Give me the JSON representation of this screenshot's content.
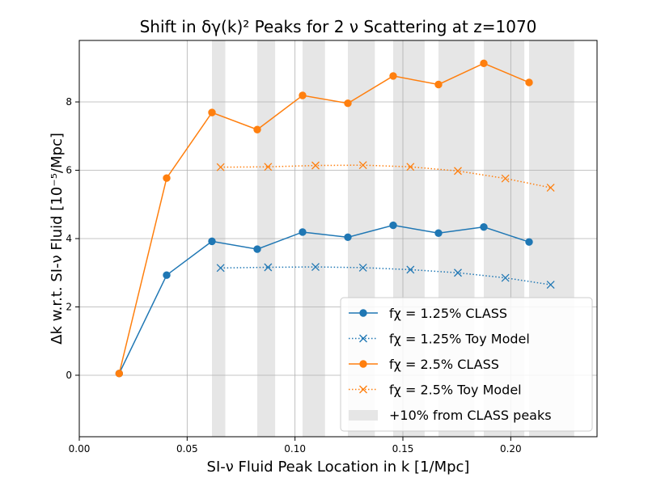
{
  "chart_data": {
    "type": "line",
    "title": "Shift in δγ(k)² Peaks for 2 ν Scattering at z=1070",
    "xlabel": "SI-ν Fluid Peak Location in k [1/Mpc]",
    "ylabel": "Δk w.r.t. SI-ν Fluid [10⁻⁵/Mpc]",
    "xlim": [
      0.0,
      0.24
    ],
    "ylim": [
      -1.8,
      9.8
    ],
    "xticks": [
      "0.00",
      "0.05",
      "0.10",
      "0.15",
      "0.20"
    ],
    "yticks": [
      "0",
      "2",
      "4",
      "6",
      "8"
    ],
    "grid": true,
    "legend_position": "lower-right",
    "series": [
      {
        "name": "fχ = 1.25% CLASS",
        "color": "#1f77b4",
        "style": "solid",
        "marker": "circle",
        "x": [
          0.0185,
          0.0405,
          0.0615,
          0.0825,
          0.1035,
          0.1245,
          0.1455,
          0.1665,
          0.1875,
          0.2085
        ],
        "y": [
          0.05,
          2.93,
          3.92,
          3.69,
          4.19,
          4.04,
          4.39,
          4.16,
          4.34,
          3.9
        ]
      },
      {
        "name": "fχ = 1.25% Toy Model",
        "color": "#1f77b4",
        "style": "dotted",
        "marker": "x",
        "x": [
          0.0655,
          0.0875,
          0.1095,
          0.1315,
          0.1535,
          0.1755,
          0.1975,
          0.2185
        ],
        "y": [
          3.14,
          3.16,
          3.17,
          3.15,
          3.09,
          3.0,
          2.85,
          2.65
        ]
      },
      {
        "name": "fχ = 2.5% CLASS",
        "color": "#ff7f0e",
        "style": "solid",
        "marker": "circle",
        "x": [
          0.0185,
          0.0405,
          0.0615,
          0.0825,
          0.1035,
          0.1245,
          0.1455,
          0.1665,
          0.1875,
          0.2085
        ],
        "y": [
          0.05,
          5.77,
          7.69,
          7.19,
          8.19,
          7.96,
          8.76,
          8.51,
          9.13,
          8.57
        ]
      },
      {
        "name": "fχ = 2.5% Toy Model",
        "color": "#ff7f0e",
        "style": "dotted",
        "marker": "x",
        "x": [
          0.0655,
          0.0875,
          0.1095,
          0.1315,
          0.1535,
          0.1755,
          0.1975,
          0.2185
        ],
        "y": [
          6.09,
          6.1,
          6.14,
          6.15,
          6.1,
          5.98,
          5.76,
          5.49
        ]
      }
    ],
    "shaded_bands": {
      "name": "+10% from CLASS peaks",
      "color": "#e6e6e6",
      "ranges": [
        [
          0.0615,
          0.0677
        ],
        [
          0.0825,
          0.0908
        ],
        [
          0.1035,
          0.1139
        ],
        [
          0.1245,
          0.137
        ],
        [
          0.1455,
          0.1601
        ],
        [
          0.1665,
          0.1832
        ],
        [
          0.1875,
          0.2063
        ],
        [
          0.2085,
          0.2294
        ]
      ]
    }
  }
}
